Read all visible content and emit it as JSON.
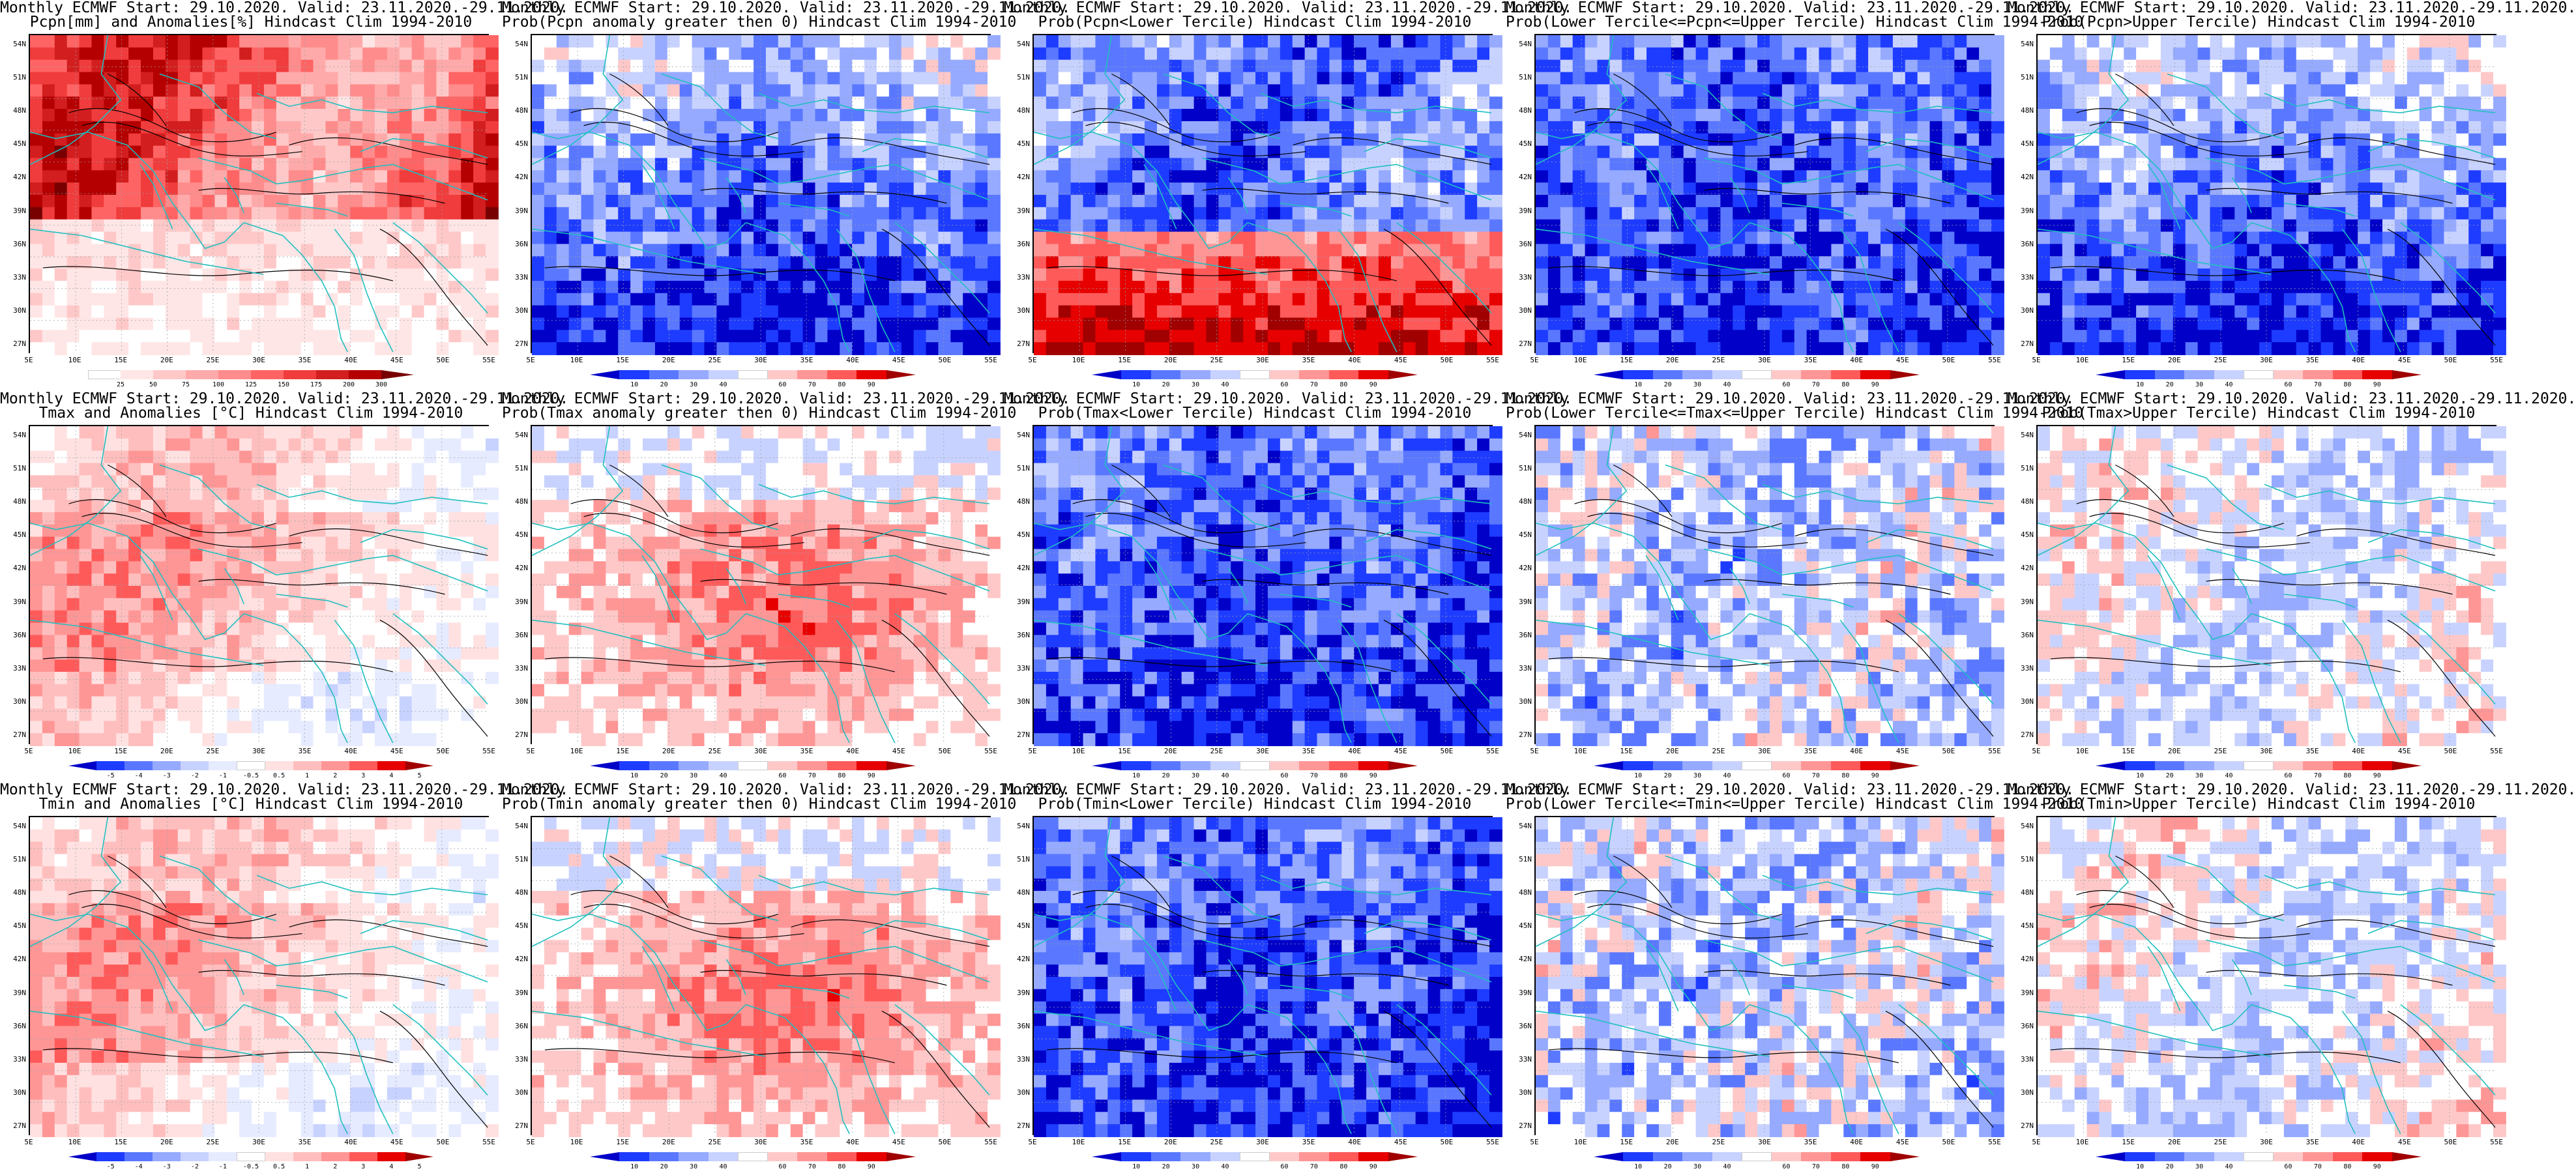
{
  "rows": [
    {
      "variable": "pcpn",
      "panels": [
        {
          "title1": "Monthly ECMWF Start: 29.10.2020. Valid: 23.11.2020.-29.11.2020.",
          "title2": "Pcpn[mm] and Anomalies[%] Hindcast Clim 1994-2010",
          "scale": "pcpn_anom",
          "field": "wet_north"
        },
        {
          "title1": "Monthly ECMWF Start: 29.10.2020. Valid: 23.11.2020.-29.11.2020.",
          "title2": "Prob(Pcpn anomaly greater then 0) Hindcast Clim 1994-2010",
          "scale": "prob",
          "field": "blue_south"
        },
        {
          "title1": "Monthly ECMWF Start: 29.10.2020. Valid: 23.11.2020.-29.11.2020.",
          "title2": "Prob(Pcpn<Lower Tercile) Hindcast Clim 1994-2010",
          "scale": "prob",
          "field": "red_south"
        },
        {
          "title1": "Monthly ECMWF Start: 29.10.2020. Valid: 23.11.2020.-29.11.2020.",
          "title2": "Prob(Lower Tercile<=Pcpn<=Upper Tercile) Hindcast Clim 1994-2010",
          "scale": "prob",
          "field": "blue_all"
        },
        {
          "title1": "Monthly ECMWF Start: 29.10.2020. Valid: 23.11.2020.-29.11.2020.",
          "title2": "Prob(Pcpn>Upper Tercile) Hindcast Clim 1994-2010",
          "scale": "prob",
          "field": "blue_south"
        }
      ]
    },
    {
      "variable": "tmax",
      "panels": [
        {
          "title1": "Monthly ECMWF Start: 29.10.2020. Valid: 23.11.2020.-29.11.2020.",
          "title2": "Tmax and Anomalies [°C] Hindcast Clim 1994-2010",
          "scale": "temp_anom",
          "field": "warm_light"
        },
        {
          "title1": "Monthly ECMWF Start: 29.10.2020. Valid: 23.11.2020.-29.11.2020.",
          "title2": "Prob(Tmax anomaly greater then 0) Hindcast Clim 1994-2010",
          "scale": "prob",
          "field": "warm_strong"
        },
        {
          "title1": "Monthly ECMWF Start: 29.10.2020. Valid: 23.11.2020.-29.11.2020.",
          "title2": "Prob(Tmax<Lower Tercile) Hindcast Clim 1994-2010",
          "scale": "prob",
          "field": "blue_all"
        },
        {
          "title1": "Monthly ECMWF Start: 29.10.2020. Valid: 23.11.2020.-29.11.2020.",
          "title2": "Prob(Lower Tercile<=Tmax<=Upper Tercile) Hindcast Clim 1994-2010",
          "scale": "prob",
          "field": "blue_light"
        },
        {
          "title1": "Monthly ECMWF Start: 29.10.2020. Valid: 23.11.2020.-29.11.2020.",
          "title2": "Prob(Tmax>Upper Tercile) Hindcast Clim 1994-2010",
          "scale": "prob",
          "field": "mixed_light"
        }
      ]
    },
    {
      "variable": "tmin",
      "panels": [
        {
          "title1": "Monthly ECMWF Start: 29.10.2020. Valid: 23.11.2020.-29.11.2020.",
          "title2": "Tmin and Anomalies [°C] Hindcast Clim 1994-2010",
          "scale": "temp_anom",
          "field": "warm_light"
        },
        {
          "title1": "Monthly ECMWF Start: 29.10.2020. Valid: 23.11.2020.-29.11.2020.",
          "title2": "Prob(Tmin anomaly greater then 0) Hindcast Clim 1994-2010",
          "scale": "prob",
          "field": "warm_strong"
        },
        {
          "title1": "Monthly ECMWF Start: 29.10.2020. Valid: 23.11.2020.-29.11.2020.",
          "title2": "Prob(Tmin<Lower Tercile) Hindcast Clim 1994-2010",
          "scale": "prob",
          "field": "blue_all"
        },
        {
          "title1": "Monthly ECMWF Start: 29.10.2020. Valid: 23.11.2020.-29.11.2020.",
          "title2": "Prob(Lower Tercile<=Tmin<=Upper Tercile) Hindcast Clim 1994-2010",
          "scale": "prob",
          "field": "blue_light"
        },
        {
          "title1": "Monthly ECMWF Start: 29.10.2020. Valid: 23.11.2020.-29.11.2020.",
          "title2": "Prob(Tmin>Upper Tercile) Hindcast Clim 1994-2010",
          "scale": "prob",
          "field": "mixed_light"
        }
      ]
    }
  ],
  "axes": {
    "lon_labels": [
      "5E",
      "10E",
      "15E",
      "20E",
      "25E",
      "30E",
      "35E",
      "40E",
      "45E",
      "50E",
      "55E"
    ],
    "lat_labels": [
      "54N",
      "51N",
      "48N",
      "45N",
      "42N",
      "39N",
      "36N",
      "33N",
      "30N",
      "27N"
    ]
  },
  "scales": {
    "prob": {
      "ticks": [
        "10",
        "20",
        "30",
        "40",
        "60",
        "70",
        "80",
        "90"
      ],
      "colors": [
        "#0000c8",
        "#1e3cff",
        "#5a78ff",
        "#96aaff",
        "#c8d2ff",
        "#ffffff",
        "#ffc8c8",
        "#ff9696",
        "#ff5a5a",
        "#e60000",
        "#a00000"
      ]
    },
    "pcpn_anom": {
      "ticks": [
        "25",
        "50",
        "75",
        "100",
        "125",
        "150",
        "175",
        "200",
        "300"
      ],
      "colors": [
        "#ffffff",
        "#ffe6e6",
        "#ffc8c8",
        "#ffaaaa",
        "#ff8c8c",
        "#ff6464",
        "#f03c3c",
        "#d21e1e",
        "#b40000",
        "#780000"
      ]
    },
    "temp_anom": {
      "ticks": [
        "-5",
        "-4",
        "-3",
        "-2",
        "-1",
        "-0.5",
        "0.5",
        "1",
        "2",
        "3",
        "4",
        "5"
      ],
      "colors": [
        "#0000c8",
        "#1e3cff",
        "#5a78ff",
        "#96aaff",
        "#c8d2ff",
        "#e6ebff",
        "#ffffff",
        "#ffe1e1",
        "#ffbebe",
        "#ff9696",
        "#ff5a5a",
        "#e60000",
        "#a00000"
      ]
    }
  },
  "colors": {
    "coast": "#1fbfbf",
    "contour": "#000000",
    "grid": "#9aa0a6"
  }
}
